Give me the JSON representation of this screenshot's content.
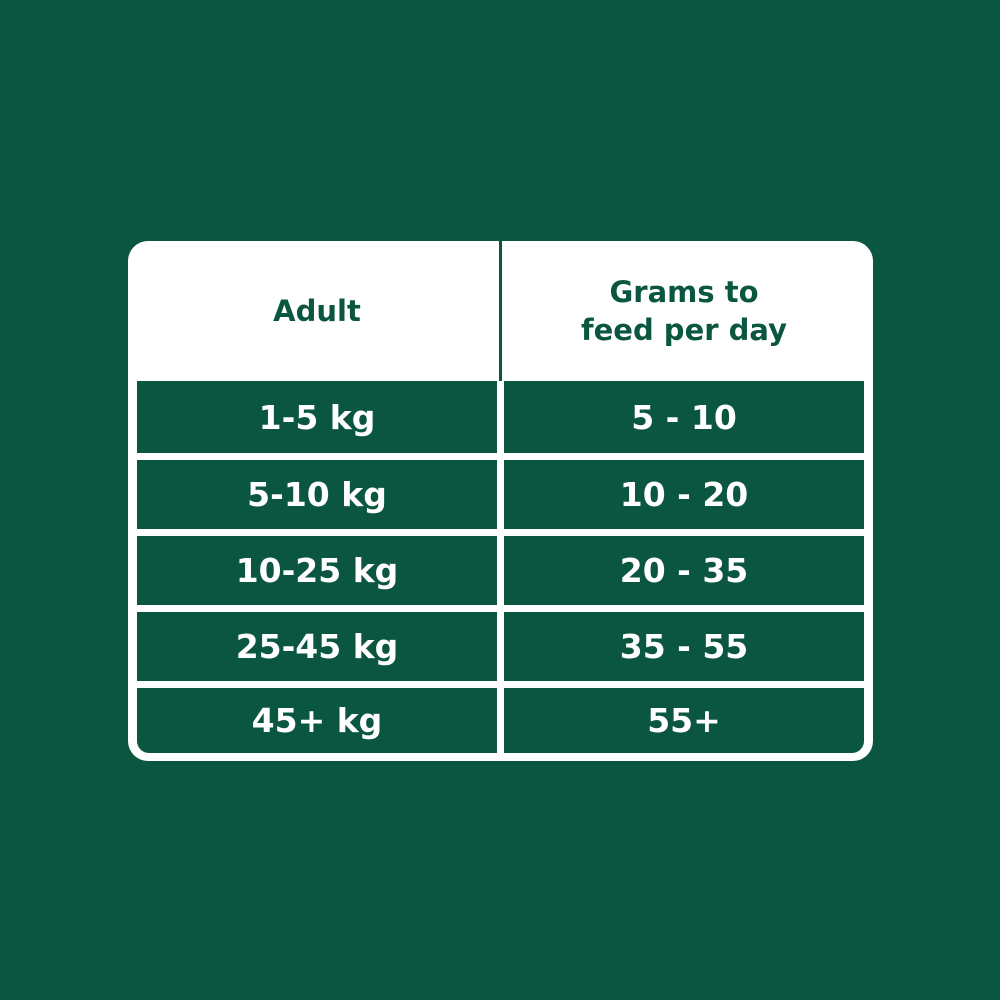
{
  "colors": {
    "background": "#0b5641",
    "card": "#ffffff",
    "header_text": "#0b5641",
    "cell_text": "#ffffff"
  },
  "table": {
    "headers": [
      "Adult",
      "Grams to feed per day"
    ],
    "rows": [
      [
        "1-5 kg",
        "5 - 10"
      ],
      [
        "5-10 kg",
        "10 - 20"
      ],
      [
        "10-25 kg",
        "20 - 35"
      ],
      [
        "25-45 kg",
        "35 - 55"
      ],
      [
        "45+ kg",
        "55+"
      ]
    ]
  }
}
